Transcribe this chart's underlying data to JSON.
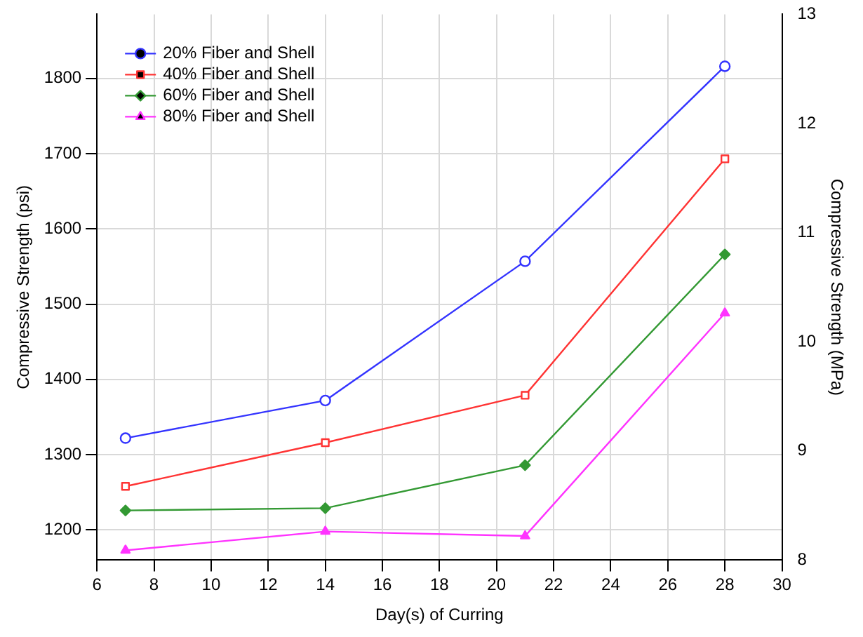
{
  "chart_data": {
    "type": "line",
    "xlabel": "Day(s) of Curring",
    "ylabel": "Compressive Strength (psi)",
    "y2label": "Compressive Strength (MPa)",
    "x": [
      7,
      14,
      21,
      28
    ],
    "series": [
      {
        "name": "20% Fiber and Shell",
        "color": "#3333ff",
        "marker": "circle",
        "values": [
          1322,
          1372,
          1557,
          1816
        ]
      },
      {
        "name": "40% Fiber and Shell",
        "color": "#ff3333",
        "marker": "square",
        "values": [
          1258,
          1316,
          1379,
          1693
        ]
      },
      {
        "name": "60% Fiber and Shell",
        "color": "#339933",
        "marker": "diamond",
        "values": [
          1226,
          1229,
          1286,
          1566
        ]
      },
      {
        "name": "80% Fiber and Shell",
        "color": "#ff33ff",
        "marker": "triangle",
        "values": [
          1173,
          1198,
          1192,
          1488
        ]
      }
    ],
    "xlim": [
      6,
      30
    ],
    "xticks": [
      6,
      8,
      10,
      12,
      14,
      16,
      18,
      20,
      22,
      24,
      26,
      28,
      30
    ],
    "ylim": [
      1160,
      1885
    ],
    "yticks": [
      1200,
      1300,
      1400,
      1500,
      1600,
      1700,
      1800
    ],
    "y2lim": [
      8,
      13
    ],
    "y2ticks": [
      8,
      9,
      10,
      11,
      12,
      13
    ],
    "grid": true,
    "legend": "top left",
    "line_style": "solid"
  }
}
